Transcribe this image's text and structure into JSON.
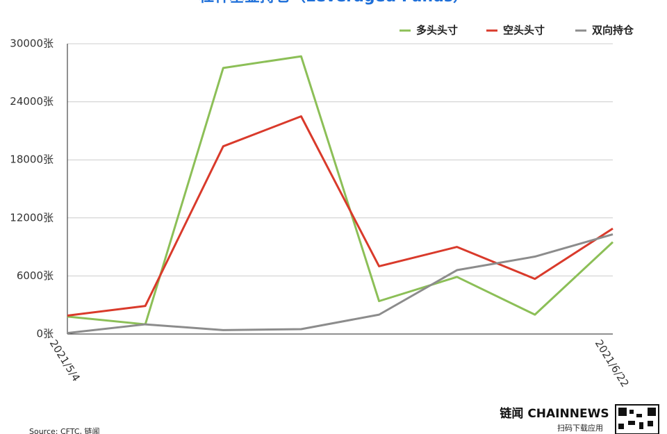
{
  "chart_data": {
    "type": "line",
    "title": "杠杆基金持仓（Leveraged Funds）",
    "categories": [
      "2021/5/4",
      null,
      null,
      null,
      null,
      null,
      null,
      "2021/6/22"
    ],
    "series": [
      {
        "name": "多头头寸",
        "color": "#8cbf57",
        "values": [
          1800,
          1000,
          27500,
          28700,
          3400,
          5900,
          2000,
          9500
        ]
      },
      {
        "name": "空头头寸",
        "color": "#d93a2b",
        "values": [
          1900,
          2900,
          19400,
          22500,
          7000,
          9000,
          5700,
          10900
        ]
      },
      {
        "name": "双向持仓",
        "color": "#8c8c8c",
        "values": [
          100,
          1000,
          400,
          500,
          2000,
          6600,
          8000,
          10300
        ]
      }
    ],
    "ylim": [
      0,
      30000
    ],
    "yticks": [
      {
        "value": 0,
        "label": "0张"
      },
      {
        "value": 6000,
        "label": "6000张"
      },
      {
        "value": 12000,
        "label": "12000张"
      },
      {
        "value": 18000,
        "label": "18000张"
      },
      {
        "value": 24000,
        "label": "24000张"
      },
      {
        "value": 30000,
        "label": "30000张"
      }
    ],
    "grid": true,
    "legend": "top-right",
    "source": "Source: CFTC, 链闻",
    "brand": "链闻 CHAINNEWS",
    "brand_sub": "扫码下载应用"
  }
}
